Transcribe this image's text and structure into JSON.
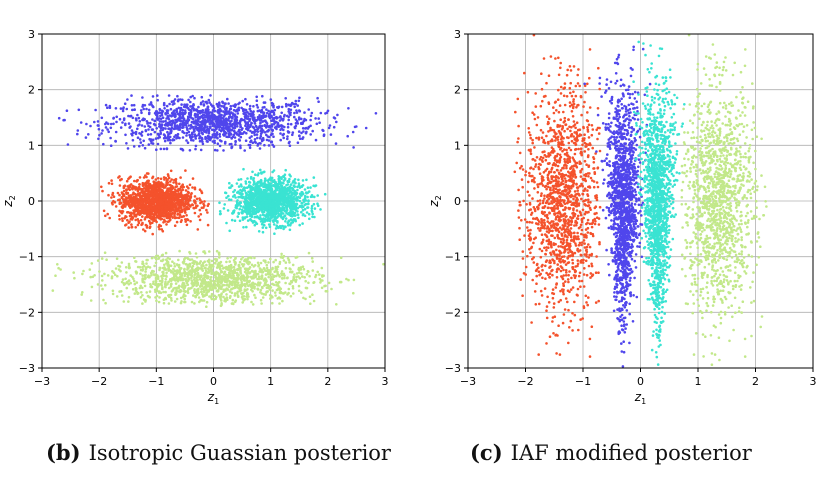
{
  "chart_data": [
    {
      "type": "scatter",
      "panel": "b",
      "xlabel": "z_1",
      "ylabel": "z_2",
      "xlim": [
        -3,
        3
      ],
      "ylim": [
        -3,
        3
      ],
      "xticks": [
        -3,
        -2,
        -1,
        0,
        1,
        2,
        3
      ],
      "yticks": [
        -3,
        -2,
        -1,
        0,
        1,
        2,
        3
      ],
      "xtick_labels": [
        "−3",
        "−2",
        "−1",
        "0",
        "1",
        "2",
        "3"
      ],
      "ytick_labels": [
        "−3",
        "−2",
        "−1",
        "0",
        "1",
        "2",
        "3"
      ],
      "grid": true,
      "series": [
        {
          "color": "#5046ec",
          "center": [
            0,
            1.4
          ],
          "spread": [
            0.9,
            0.22
          ],
          "clip": [
            -3,
            3,
            0.9,
            1.9
          ]
        },
        {
          "color": "#f4522c",
          "center": [
            -1,
            0
          ],
          "spread": [
            0.32,
            0.2
          ],
          "clip": [
            -2,
            0,
            -0.6,
            0.6
          ]
        },
        {
          "color": "#3ae3d2",
          "center": [
            1,
            0
          ],
          "spread": [
            0.32,
            0.2
          ],
          "clip": [
            0,
            2,
            -0.6,
            0.6
          ]
        },
        {
          "color": "#c2e88a",
          "center": [
            0,
            -1.4
          ],
          "spread": [
            0.9,
            0.22
          ],
          "clip": [
            -3,
            3,
            -1.9,
            -0.9
          ]
        }
      ],
      "caption_tag": "(b)",
      "caption_text": "Isotropic Guassian posterior"
    },
    {
      "type": "scatter",
      "panel": "c",
      "xlabel": "z_1",
      "ylabel": "z_2",
      "xlim": [
        -3,
        3
      ],
      "ylim": [
        -3,
        3
      ],
      "xticks": [
        -3,
        -2,
        -1,
        0,
        1,
        2,
        3
      ],
      "yticks": [
        -3,
        -2,
        -1,
        0,
        1,
        2,
        3
      ],
      "xtick_labels": [
        "−3",
        "−2",
        "−1",
        "0",
        "1",
        "2",
        "3"
      ],
      "ytick_labels": [
        "−3",
        "−2",
        "−1",
        "0",
        "1",
        "2",
        "3"
      ],
      "grid": true,
      "series": [
        {
          "color": "#f4522c",
          "center": [
            -1.35,
            0
          ],
          "spread": [
            0.32,
            1.0
          ],
          "clip": [
            -2.2,
            -0.7,
            -3,
            3
          ]
        },
        {
          "color": "#5046ec",
          "center": [
            -0.3,
            0
          ],
          "spread": [
            0.13,
            1.0
          ],
          "clip": [
            -0.75,
            0.15,
            -3,
            3
          ]
        },
        {
          "color": "#3ae3d2",
          "center": [
            0.3,
            0
          ],
          "spread": [
            0.13,
            1.0
          ],
          "clip": [
            -0.05,
            0.75,
            -3,
            3
          ]
        },
        {
          "color": "#c2e88a",
          "center": [
            1.35,
            0
          ],
          "spread": [
            0.32,
            1.0
          ],
          "clip": [
            0.7,
            2.2,
            -3,
            3
          ]
        }
      ],
      "caption_tag": "(c)",
      "caption_text": "IAF modified posterior"
    }
  ]
}
